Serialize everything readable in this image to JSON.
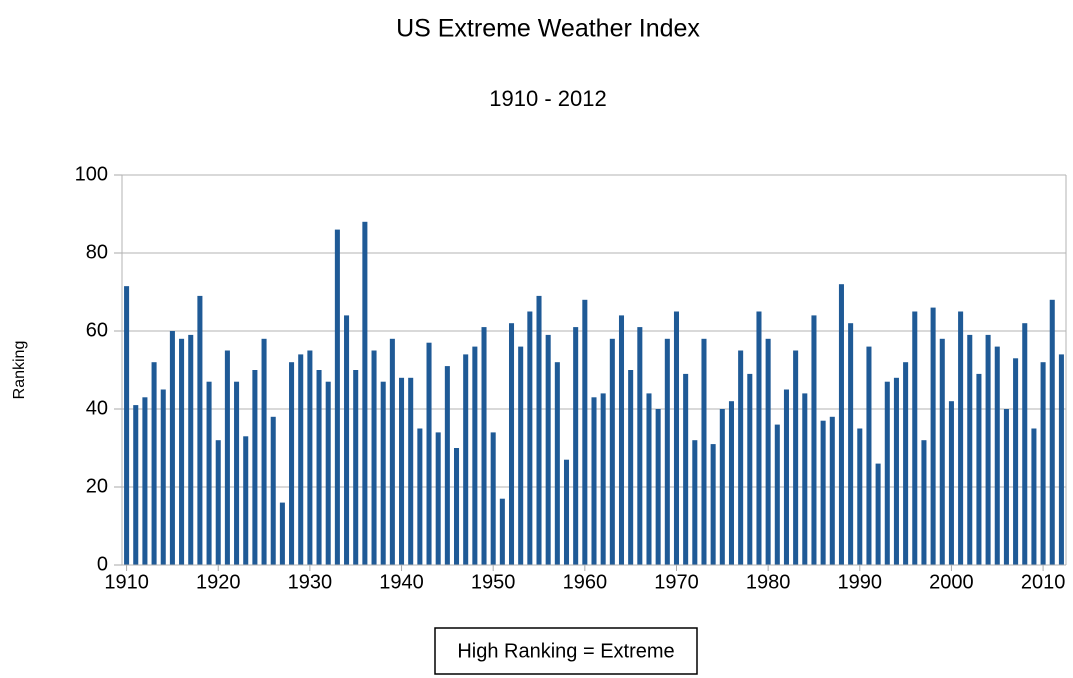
{
  "chart_data": {
    "type": "bar",
    "title": "US Extreme Weather Index",
    "subtitle": "1910 - 2012",
    "y_label": "Ranking",
    "annotation": "High Ranking = Extreme",
    "color": "#1f5a96",
    "grid": true,
    "x": [
      1910,
      1911,
      1912,
      1913,
      1914,
      1915,
      1916,
      1917,
      1918,
      1919,
      1920,
      1921,
      1922,
      1923,
      1924,
      1925,
      1926,
      1927,
      1928,
      1929,
      1930,
      1931,
      1932,
      1933,
      1934,
      1935,
      1936,
      1937,
      1938,
      1939,
      1940,
      1941,
      1942,
      1943,
      1944,
      1945,
      1946,
      1947,
      1948,
      1949,
      1950,
      1951,
      1952,
      1953,
      1954,
      1955,
      1956,
      1957,
      1958,
      1959,
      1960,
      1961,
      1962,
      1963,
      1964,
      1965,
      1966,
      1967,
      1968,
      1969,
      1970,
      1971,
      1972,
      1973,
      1974,
      1975,
      1976,
      1977,
      1978,
      1979,
      1980,
      1981,
      1982,
      1983,
      1984,
      1985,
      1986,
      1987,
      1988,
      1989,
      1990,
      1991,
      1992,
      1993,
      1994,
      1995,
      1996,
      1997,
      1998,
      1999,
      2000,
      2001,
      2002,
      2003,
      2004,
      2005,
      2006,
      2007,
      2008,
      2009,
      2010,
      2011,
      2012
    ],
    "values": [
      71.5,
      41,
      43,
      52,
      45,
      60,
      58,
      59,
      69,
      47,
      32,
      55,
      47,
      33,
      50,
      58,
      38,
      16,
      52,
      54,
      55,
      50,
      47,
      86,
      64,
      50,
      88,
      55,
      47,
      58,
      48,
      48,
      35,
      57,
      34,
      51,
      30,
      54,
      56,
      61,
      34,
      17,
      62,
      56,
      65,
      69,
      59,
      52,
      27,
      61,
      68,
      43,
      44,
      58,
      64,
      50,
      61,
      44,
      40,
      58,
      65,
      49,
      32,
      58,
      31,
      40,
      42,
      55,
      49,
      65,
      58,
      36,
      45,
      55,
      44,
      64,
      37,
      38,
      72,
      62,
      35,
      56,
      26,
      47,
      48,
      52,
      65,
      32,
      66,
      58,
      42,
      65,
      59,
      49,
      59,
      56,
      40,
      53,
      62,
      35,
      52,
      68,
      54
    ],
    "xlim": [
      1909.5,
      2012.5
    ],
    "xticks": [
      1910,
      1920,
      1930,
      1940,
      1950,
      1960,
      1970,
      1980,
      1990,
      2000,
      2010
    ],
    "ylim": [
      0,
      100
    ],
    "yticks": [
      0,
      20,
      40,
      60,
      80,
      100
    ]
  }
}
